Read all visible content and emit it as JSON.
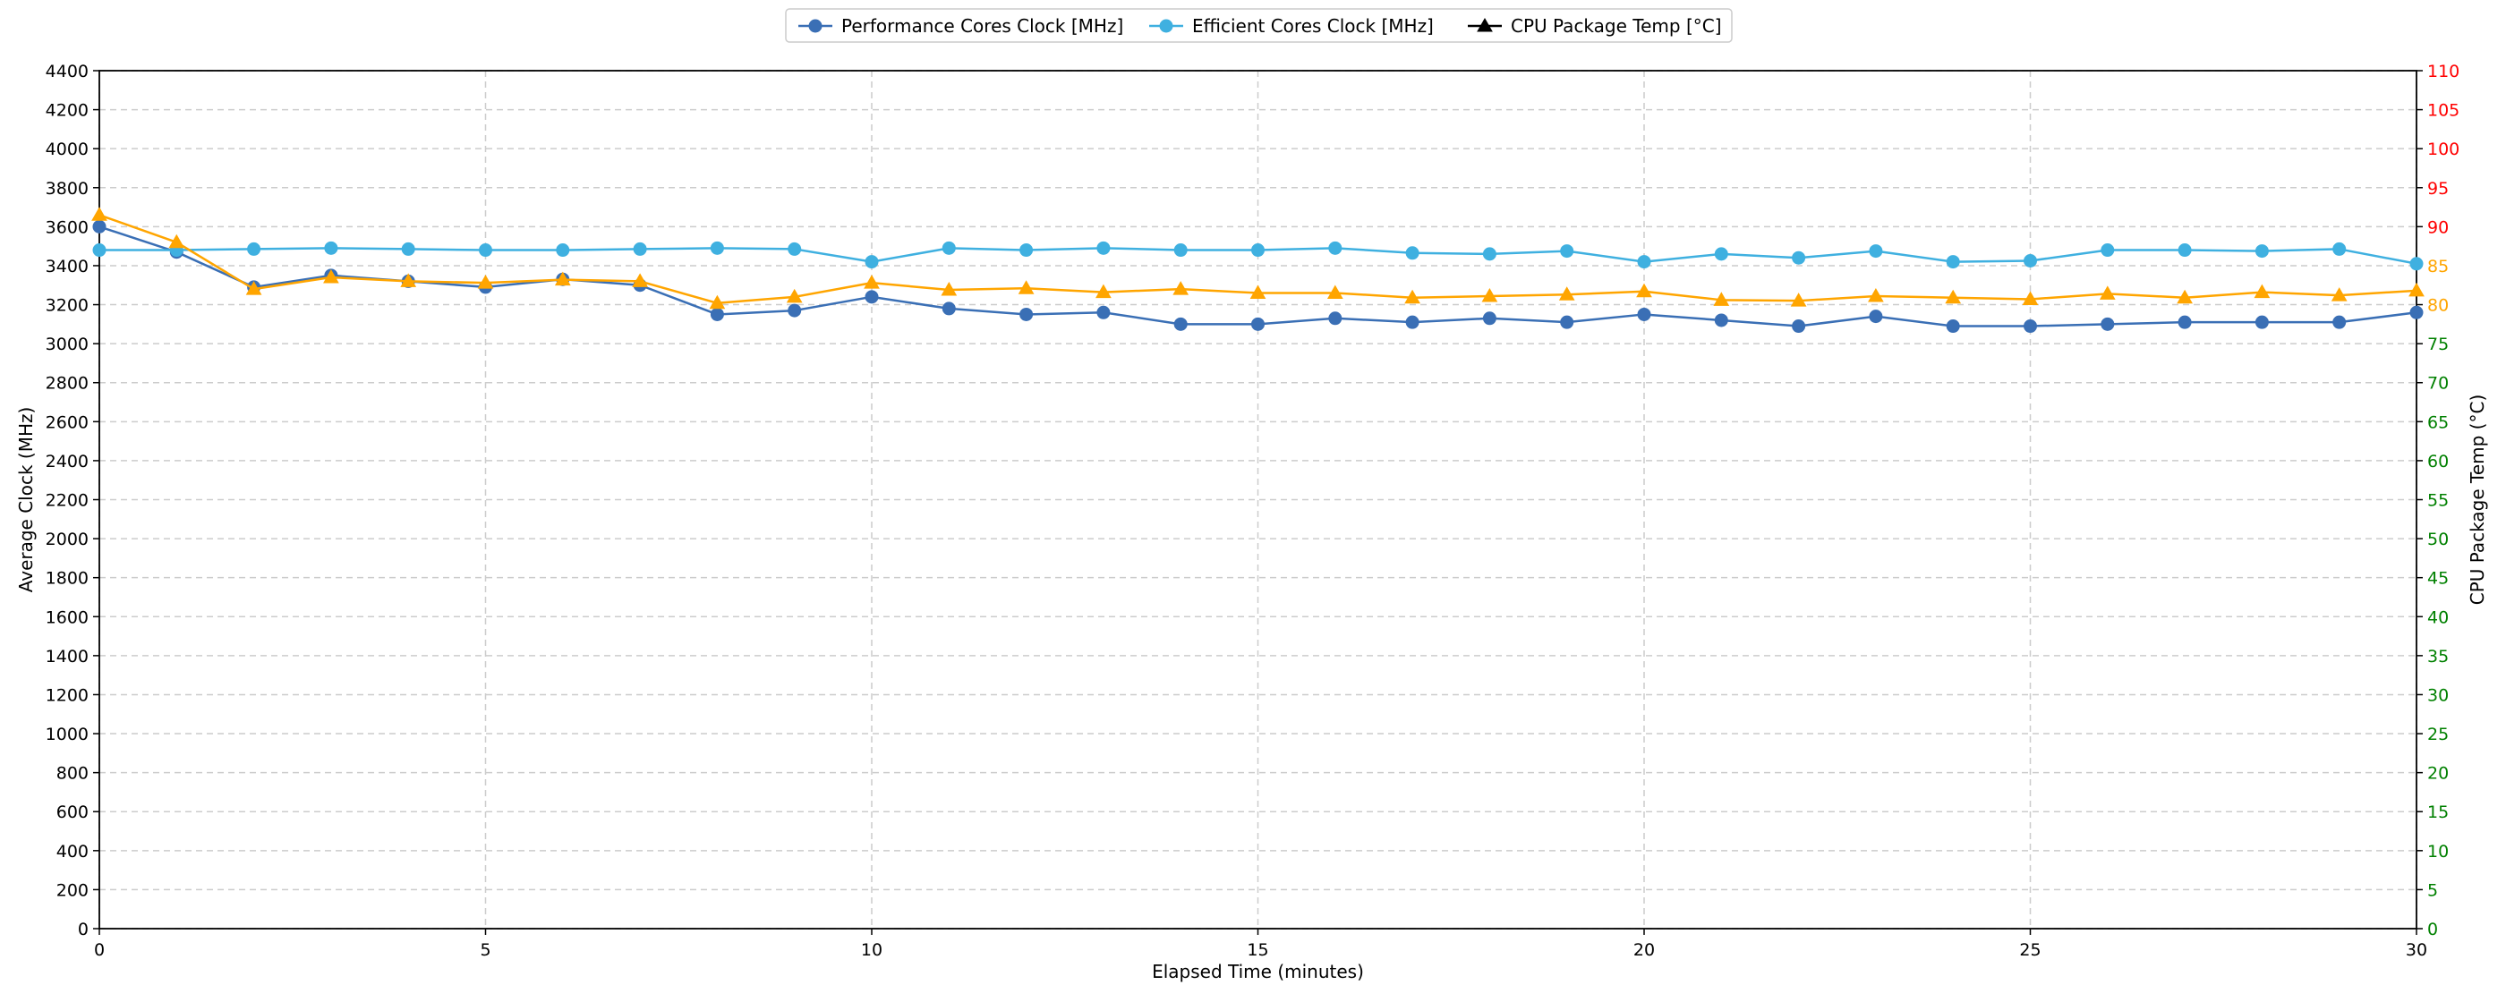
{
  "chart_data": {
    "type": "line",
    "xlabel": "Elapsed Time (minutes)",
    "ylabel": "Average Clock (MHz)",
    "y2label": "CPU Package Temp (°C)",
    "xlim": [
      0,
      30
    ],
    "ylim": [
      0,
      4400
    ],
    "y2lim": [
      0,
      110
    ],
    "x_ticks": [
      0,
      5,
      10,
      15,
      20,
      25,
      30
    ],
    "y_ticks": [
      0,
      200,
      400,
      600,
      800,
      1000,
      1200,
      1400,
      1600,
      1800,
      2000,
      2200,
      2400,
      2600,
      2800,
      3000,
      3200,
      3400,
      3600,
      3800,
      4000,
      4200,
      4400
    ],
    "y2_ticks": [
      0,
      5,
      10,
      15,
      20,
      25,
      30,
      35,
      40,
      45,
      50,
      55,
      60,
      65,
      70,
      75,
      80,
      85,
      90,
      95,
      100,
      105,
      110
    ],
    "y2_tick_colors": {
      "low": "#008000",
      "mid": "#ffa500",
      "high": "#ff0000"
    },
    "grid": true,
    "legend_position": "top-center",
    "x": [
      0,
      1,
      2,
      3,
      4,
      5,
      6,
      7,
      8,
      9,
      10,
      11,
      12,
      13,
      14,
      15,
      16,
      17,
      18,
      19,
      20,
      21,
      22,
      23,
      24,
      25,
      26,
      27,
      28,
      29,
      30
    ],
    "series": [
      {
        "name": "Performance Cores Clock [MHz]",
        "axis": "left",
        "color": "#3a6fb5",
        "marker": "circle",
        "values": [
          3600,
          3470,
          3290,
          3350,
          3320,
          3290,
          3330,
          3300,
          3150,
          3170,
          3240,
          3180,
          3150,
          3160,
          3100,
          3100,
          3130,
          3110,
          3130,
          3110,
          3150,
          3120,
          3090,
          3140,
          3090,
          3090,
          3100,
          3110,
          3110,
          3110,
          3160
        ]
      },
      {
        "name": "Efficient Cores Clock [MHz]",
        "axis": "left",
        "color": "#3fb0e0",
        "marker": "circle",
        "values": [
          3480,
          3480,
          3485,
          3490,
          3485,
          3480,
          3480,
          3485,
          3490,
          3485,
          3420,
          3490,
          3480,
          3490,
          3480,
          3480,
          3490,
          3465,
          3460,
          3475,
          3420,
          3460,
          3440,
          3475,
          3420,
          3425,
          3480,
          3480,
          3475,
          3485,
          3410
        ]
      },
      {
        "name": "CPU Package Temp [°C]",
        "axis": "right",
        "color": "#ffa500",
        "legend_color": "#000000",
        "marker": "triangle",
        "values": [
          91.5,
          88,
          82,
          83.5,
          83,
          82.8,
          83.2,
          83,
          80.2,
          81,
          82.8,
          81.9,
          82.1,
          81.6,
          82,
          81.5,
          81.5,
          80.9,
          81.1,
          81.3,
          81.7,
          80.6,
          80.5,
          81.1,
          80.9,
          80.7,
          81.4,
          80.9,
          81.6,
          81.2,
          81.8
        ]
      }
    ]
  }
}
